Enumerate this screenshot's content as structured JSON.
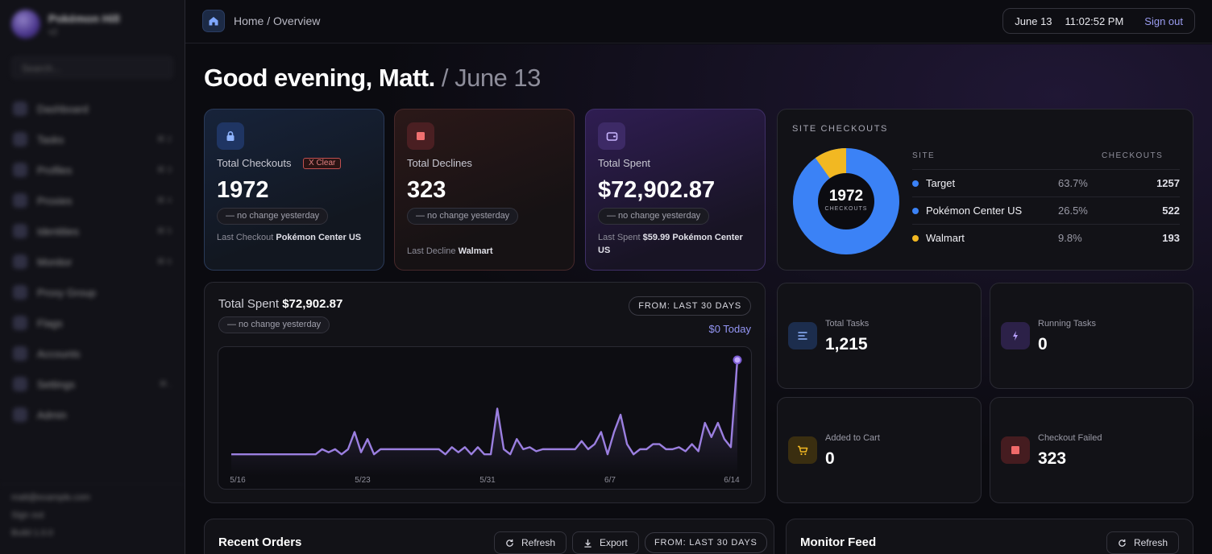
{
  "sidebar": {
    "profile_name": "Pokémon Hill",
    "profile_sub": "v2",
    "search_placeholder": "Search...",
    "items": [
      {
        "label": "Dashboard",
        "badge": ""
      },
      {
        "label": "Tasks",
        "badge": "⌘ 2"
      },
      {
        "label": "Profiles",
        "badge": "⌘ 3"
      },
      {
        "label": "Proxies",
        "badge": "⌘ 4"
      },
      {
        "label": "Identities",
        "badge": "⌘ 5"
      },
      {
        "label": "Monitor",
        "badge": "⌘ 6"
      },
      {
        "label": "Proxy Group",
        "badge": ""
      },
      {
        "label": "Flags",
        "badge": ""
      },
      {
        "label": "Accounts",
        "badge": ""
      },
      {
        "label": "Settings",
        "badge": "⌘ ,"
      },
      {
        "label": "Admin",
        "badge": ""
      }
    ],
    "footer_email": "matt@example.com",
    "footer_signout": "Sign out",
    "footer_version": "Build 1.0.0"
  },
  "topbar": {
    "breadcrumb": "Home / Overview",
    "date": "June 13",
    "time": "11:02:52 PM",
    "signout": "Sign out"
  },
  "greeting": {
    "text": "Good evening, Matt.",
    "date": " / June 13"
  },
  "stats": {
    "checkouts": {
      "label": "Total Checkouts",
      "clear": "X Clear",
      "value": "1972",
      "change": "— no change yesterday",
      "last_prefix": "Last Checkout ",
      "last_value": "Pokémon Center US"
    },
    "declines": {
      "label": "Total Declines",
      "value": "323",
      "change": "— no change yesterday",
      "last_prefix": "Last Decline ",
      "last_value": "Walmart"
    },
    "spent": {
      "label": "Total Spent",
      "value": "$72,902.87",
      "change": "— no change yesterday",
      "last_prefix": "Last Spent ",
      "last_value": "$59.99 Pokémon Center US"
    }
  },
  "site_checkouts": {
    "title": "SITE CHECKOUTS",
    "col_site": "SITE",
    "col_checkouts": "CHECKOUTS",
    "total": "1972",
    "total_label": "CHECKOUTS",
    "rows": [
      {
        "name": "Target",
        "pct": "63.7%",
        "count": "1257",
        "color": "#3b82f6"
      },
      {
        "name": "Pokémon Center US",
        "pct": "26.5%",
        "count": "522",
        "color": "#3b82f6"
      },
      {
        "name": "Walmart",
        "pct": "9.8%",
        "count": "193",
        "color": "#f2b822"
      }
    ]
  },
  "spent_chart": {
    "title_prefix": "Total Spent ",
    "title_value": "$72,902.87",
    "change": "— no change yesterday",
    "range": "FROM: LAST 30 DAYS",
    "today": "$0 Today"
  },
  "chart_data": {
    "type": "line",
    "xlabel": "",
    "ylabel": "",
    "tick_labels": [
      "5/16",
      "5/23",
      "5/31",
      "6/7",
      "6/14"
    ],
    "series": [
      {
        "color": "#9b7fe0",
        "values": [
          0.07,
          0.07,
          0.07,
          0.07,
          0.07,
          0.07,
          0.07,
          0.07,
          0.07,
          0.07,
          0.07,
          0.07,
          0.07,
          0.07,
          0.12,
          0.09,
          0.12,
          0.07,
          0.12,
          0.29,
          0.09,
          0.22,
          0.07,
          0.12,
          0.12,
          0.12,
          0.12,
          0.12,
          0.12,
          0.12,
          0.12,
          0.12,
          0.12,
          0.07,
          0.14,
          0.09,
          0.14,
          0.07,
          0.14,
          0.07,
          0.07,
          0.52,
          0.12,
          0.07,
          0.22,
          0.12,
          0.14,
          0.1,
          0.12,
          0.12,
          0.12,
          0.12,
          0.12,
          0.12,
          0.2,
          0.12,
          0.17,
          0.29,
          0.07,
          0.29,
          0.46,
          0.17,
          0.07,
          0.12,
          0.12,
          0.17,
          0.17,
          0.12,
          0.12,
          0.14,
          0.1,
          0.17,
          0.1,
          0.38,
          0.24,
          0.38,
          0.22,
          0.14,
          1.0
        ]
      }
    ]
  },
  "mini": {
    "total_tasks": {
      "label": "Total Tasks",
      "value": "1,215"
    },
    "running_tasks": {
      "label": "Running Tasks",
      "value": "0"
    },
    "added_to_cart": {
      "label": "Added to Cart",
      "value": "0"
    },
    "checkout_failed": {
      "label": "Checkout Failed",
      "value": "323"
    }
  },
  "recent_orders": {
    "title": "Recent Orders",
    "refresh": "Refresh",
    "export": "Export",
    "range": "FROM: LAST 30 DAYS"
  },
  "monitor_feed": {
    "title": "Monitor Feed",
    "refresh": "Refresh"
  }
}
